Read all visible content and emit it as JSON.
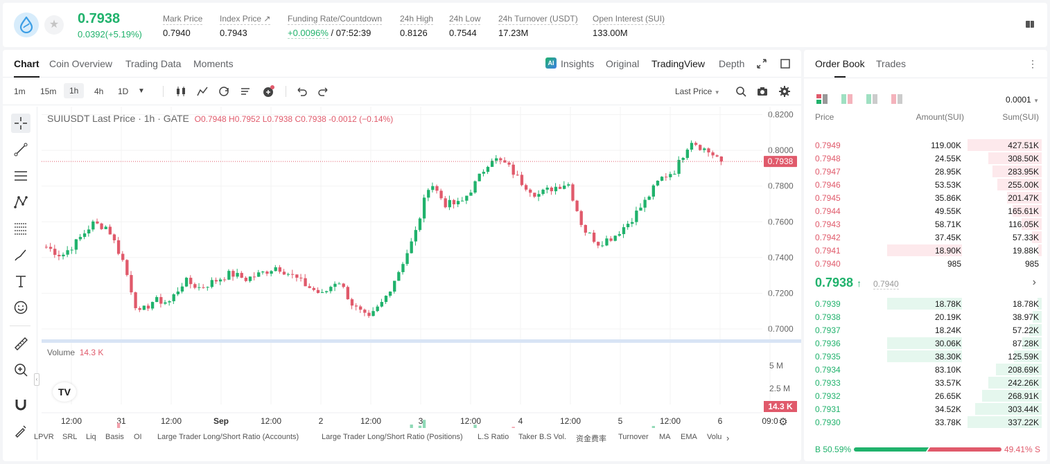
{
  "header": {
    "last_price": "0.7938",
    "change": "0.0392(+5.19%)",
    "stats": [
      {
        "label": "Mark Price",
        "value": "0.7940"
      },
      {
        "label": "Index Price ↗",
        "value": "0.7943"
      },
      {
        "label": "Funding Rate/Countdown",
        "value_green": "+0.0096%",
        "value": " / 07:52:39"
      },
      {
        "label": "24h High",
        "value": "0.8126"
      },
      {
        "label": "24h Low",
        "value": "0.7544"
      },
      {
        "label": "24h Turnover (USDT)",
        "value": "17.23M"
      },
      {
        "label": "Open Interest (SUI)",
        "value": "133.00M"
      }
    ]
  },
  "chart_tabs": [
    "Chart",
    "Coin Overview",
    "Trading Data",
    "Moments"
  ],
  "chart_right_tabs": [
    "Insights",
    "Original",
    "TradingView",
    "Depth"
  ],
  "intervals": [
    "1m",
    "15m",
    "1h",
    "4h",
    "1D"
  ],
  "last_price_selector": "Last Price",
  "legend": {
    "symbol": "SUIUSDT Last Price · 1h · GATE",
    "ohlc": "O0.7948  H0.7952  L0.7938  C0.7938  -0.0012 (−0.14%)"
  },
  "volume_label": "Volume",
  "volume_value": "14.3 K",
  "bottom_indicators": [
    "LPVR",
    "SRL",
    "Liq",
    "Basis",
    "OI",
    "Large Trader Long/Short Ratio (Accounts)",
    "Large Trader Long/Short Ratio (Positions)",
    "L.S Ratio",
    "Taker B.S Vol.",
    "资金费率",
    "Turnover",
    "MA",
    "EMA",
    "Volu"
  ],
  "chart_data": {
    "type": "candlestick",
    "y_ticks": [
      "0.8200",
      "0.8000",
      "0.7800",
      "0.7600",
      "0.7400",
      "0.7200",
      "0.7000"
    ],
    "ylim": [
      0.6965,
      0.8245
    ],
    "x_ticks": [
      "12:00",
      "31",
      "12:00",
      "Sep",
      "12:00",
      "2",
      "12:00",
      "3",
      "12:00",
      "4",
      "12:00",
      "5",
      "12:00",
      "6",
      "09:0"
    ],
    "last_price_label": "0.7938",
    "volume_ticks": [
      "5 M",
      "2.5 M"
    ],
    "volume_last_label": "14.3 K",
    "close_anchors": [
      0.746,
      0.741,
      0.749,
      0.759,
      0.757,
      0.738,
      0.708,
      0.716,
      0.715,
      0.727,
      0.723,
      0.727,
      0.731,
      0.728,
      0.731,
      0.735,
      0.73,
      0.724,
      0.719,
      0.728,
      0.713,
      0.705,
      0.716,
      0.733,
      0.752,
      0.783,
      0.77,
      0.77,
      0.782,
      0.796,
      0.792,
      0.782,
      0.775,
      0.779,
      0.782,
      0.756,
      0.748,
      0.752,
      0.76,
      0.771,
      0.784,
      0.789,
      0.806,
      0.8,
      0.795
    ]
  },
  "orderbook": {
    "tabs": [
      "Order Book",
      "Trades"
    ],
    "precision": "0.0001",
    "headers": {
      "price": "Price",
      "amount": "Amount(SUI)",
      "sum": "Sum(SUI)"
    },
    "asks": [
      {
        "p": "0.7949",
        "a": "119.00K",
        "s": "427.51K",
        "af": 0,
        "sf": 1.0
      },
      {
        "p": "0.7948",
        "a": "24.55K",
        "s": "308.50K",
        "af": 0,
        "sf": 0.72
      },
      {
        "p": "0.7947",
        "a": "28.95K",
        "s": "283.95K",
        "af": 0,
        "sf": 0.66
      },
      {
        "p": "0.7946",
        "a": "53.53K",
        "s": "255.00K",
        "af": 0,
        "sf": 0.6
      },
      {
        "p": "0.7945",
        "a": "35.86K",
        "s": "201.47K",
        "af": 0,
        "sf": 0.47
      },
      {
        "p": "0.7944",
        "a": "49.55K",
        "s": "165.61K",
        "af": 0,
        "sf": 0.39
      },
      {
        "p": "0.7943",
        "a": "58.71K",
        "s": "116.05K",
        "af": 0,
        "sf": 0.27
      },
      {
        "p": "0.7942",
        "a": "37.45K",
        "s": "57.33K",
        "af": 0,
        "sf": 0.13
      },
      {
        "p": "0.7941",
        "a": "18.90K",
        "s": "19.88K",
        "af": 1,
        "sf": 0.05
      },
      {
        "p": "0.7940",
        "a": "985",
        "s": "985",
        "af": 0,
        "sf": 0
      }
    ],
    "mid_price": "0.7938",
    "mid_arrow": "↑",
    "mark_price": "0.7940",
    "bids": [
      {
        "p": "0.7939",
        "a": "18.78K",
        "s": "18.78K",
        "af": 1,
        "sf": 0.06
      },
      {
        "p": "0.7938",
        "a": "20.19K",
        "s": "38.97K",
        "af": 0,
        "sf": 0.12
      },
      {
        "p": "0.7937",
        "a": "18.24K",
        "s": "57.22K",
        "af": 0,
        "sf": 0.17
      },
      {
        "p": "0.7936",
        "a": "30.06K",
        "s": "87.28K",
        "af": 1,
        "sf": 0.26
      },
      {
        "p": "0.7935",
        "a": "38.30K",
        "s": "125.59K",
        "af": 1,
        "sf": 0.37
      },
      {
        "p": "0.7934",
        "a": "83.10K",
        "s": "208.69K",
        "af": 0,
        "sf": 0.62
      },
      {
        "p": "0.7933",
        "a": "33.57K",
        "s": "242.26K",
        "af": 0,
        "sf": 0.72
      },
      {
        "p": "0.7932",
        "a": "26.65K",
        "s": "268.91K",
        "af": 0,
        "sf": 0.8
      },
      {
        "p": "0.7931",
        "a": "34.52K",
        "s": "303.44K",
        "af": 0,
        "sf": 0.9
      },
      {
        "p": "0.7930",
        "a": "33.78K",
        "s": "337.22K",
        "af": 0,
        "sf": 1.0
      }
    ],
    "buy_ratio": "B 50.59%",
    "sell_ratio": "49.41% S",
    "buy_fraction": 0.5059
  },
  "colors": {
    "up": "#20b26c",
    "down": "#e05a6b",
    "up_light": "#8fd9b6",
    "down_light": "#f2a0ab"
  }
}
